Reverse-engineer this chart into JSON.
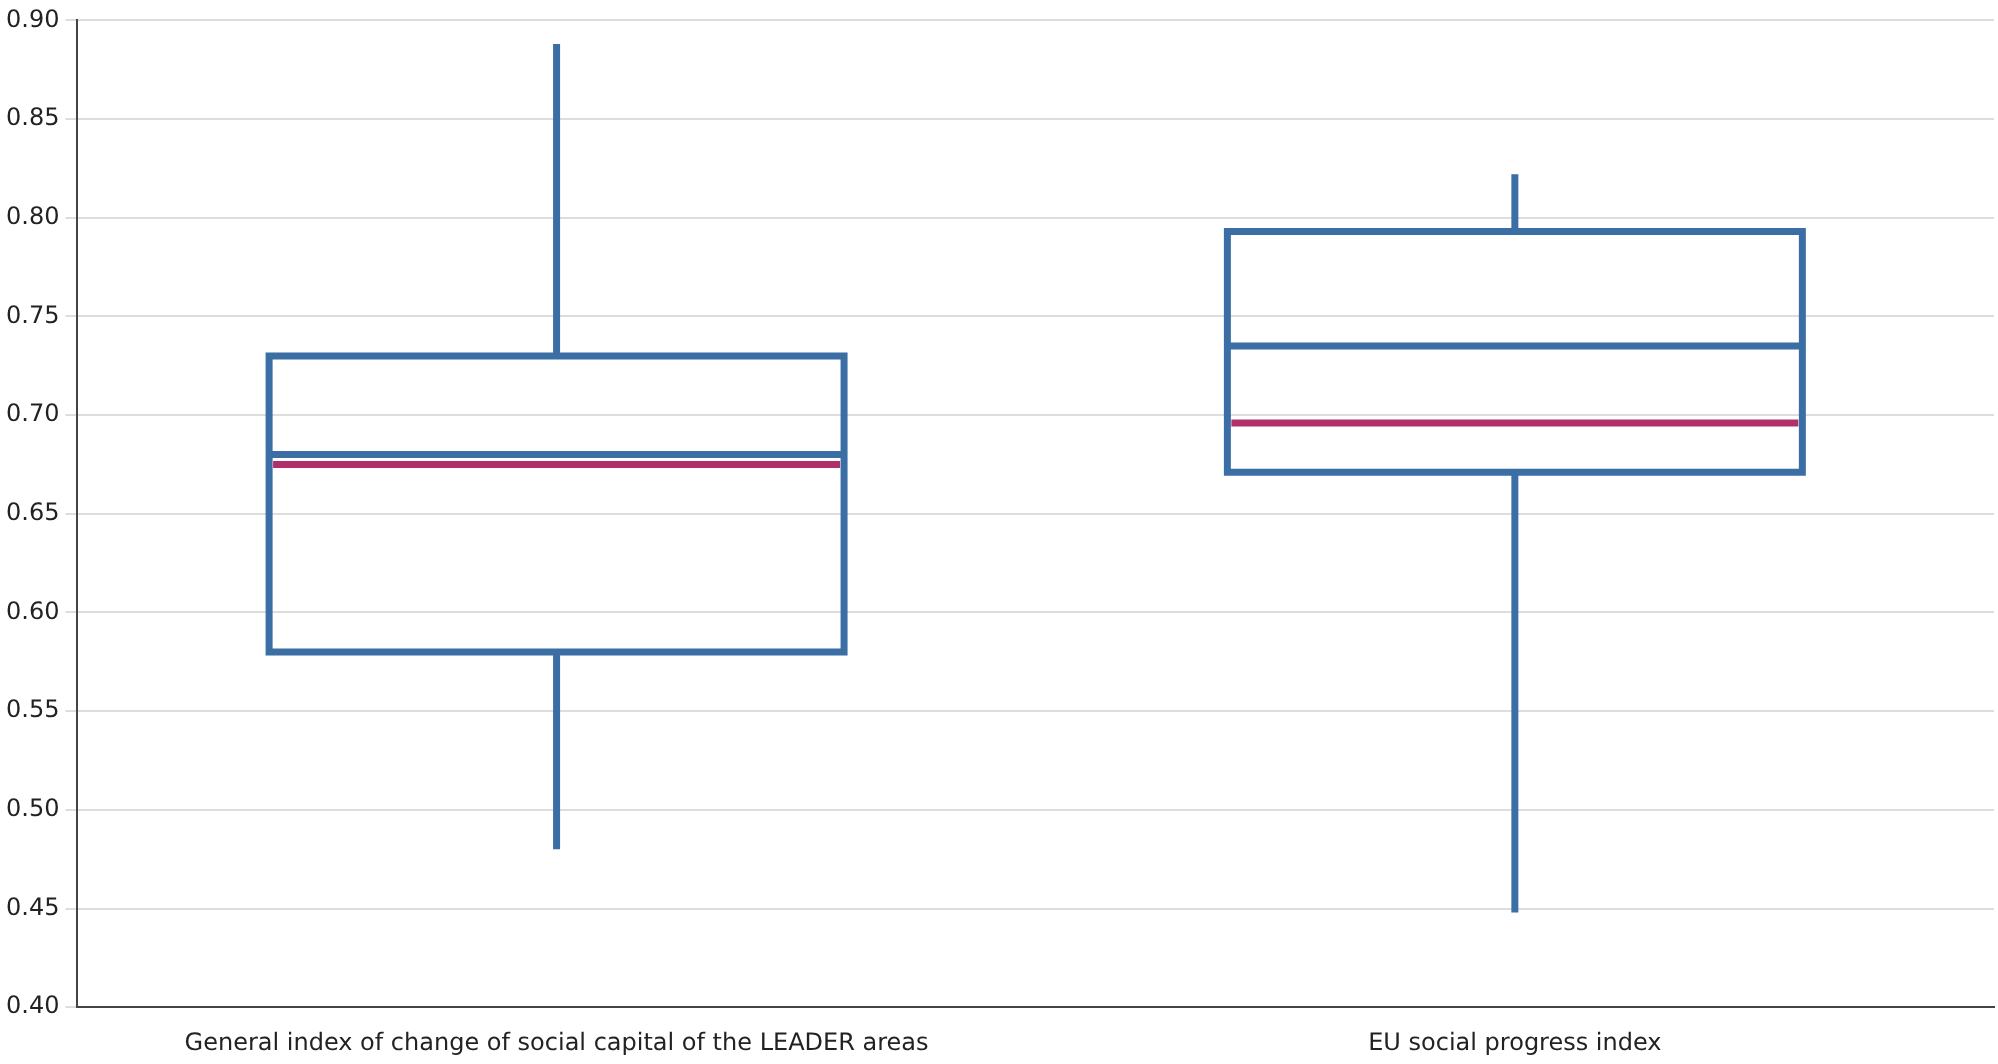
{
  "chart_data": {
    "type": "box",
    "categories": [
      "General index of change of social capital of the LEADER areas",
      "EU social progress index"
    ],
    "series": [
      {
        "color": "#3a6ea5",
        "boxes": [
          {
            "low": 0.48,
            "q1": 0.58,
            "median": 0.68,
            "q3": 0.73,
            "high": 0.888,
            "mean": 0.675
          },
          {
            "low": 0.448,
            "q1": 0.671,
            "median": 0.735,
            "q3": 0.793,
            "high": 0.822,
            "mean": 0.696
          }
        ]
      }
    ],
    "ylim": [
      0.4,
      0.9
    ],
    "yticks": [
      {
        "value": 0.4,
        "label": "0.40"
      },
      {
        "value": 0.45,
        "label": "0.45"
      },
      {
        "value": 0.5,
        "label": "0.50"
      },
      {
        "value": 0.55,
        "label": "0.55"
      },
      {
        "value": 0.6,
        "label": "0.60"
      },
      {
        "value": 0.65,
        "label": "0.65"
      },
      {
        "value": 0.7,
        "label": "0.70"
      },
      {
        "value": 0.75,
        "label": "0.75"
      },
      {
        "value": 0.8,
        "label": "0.80"
      },
      {
        "value": 0.85,
        "label": "0.85"
      },
      {
        "value": 0.9,
        "label": "0.90"
      }
    ],
    "grid": "y",
    "legend": false
  }
}
